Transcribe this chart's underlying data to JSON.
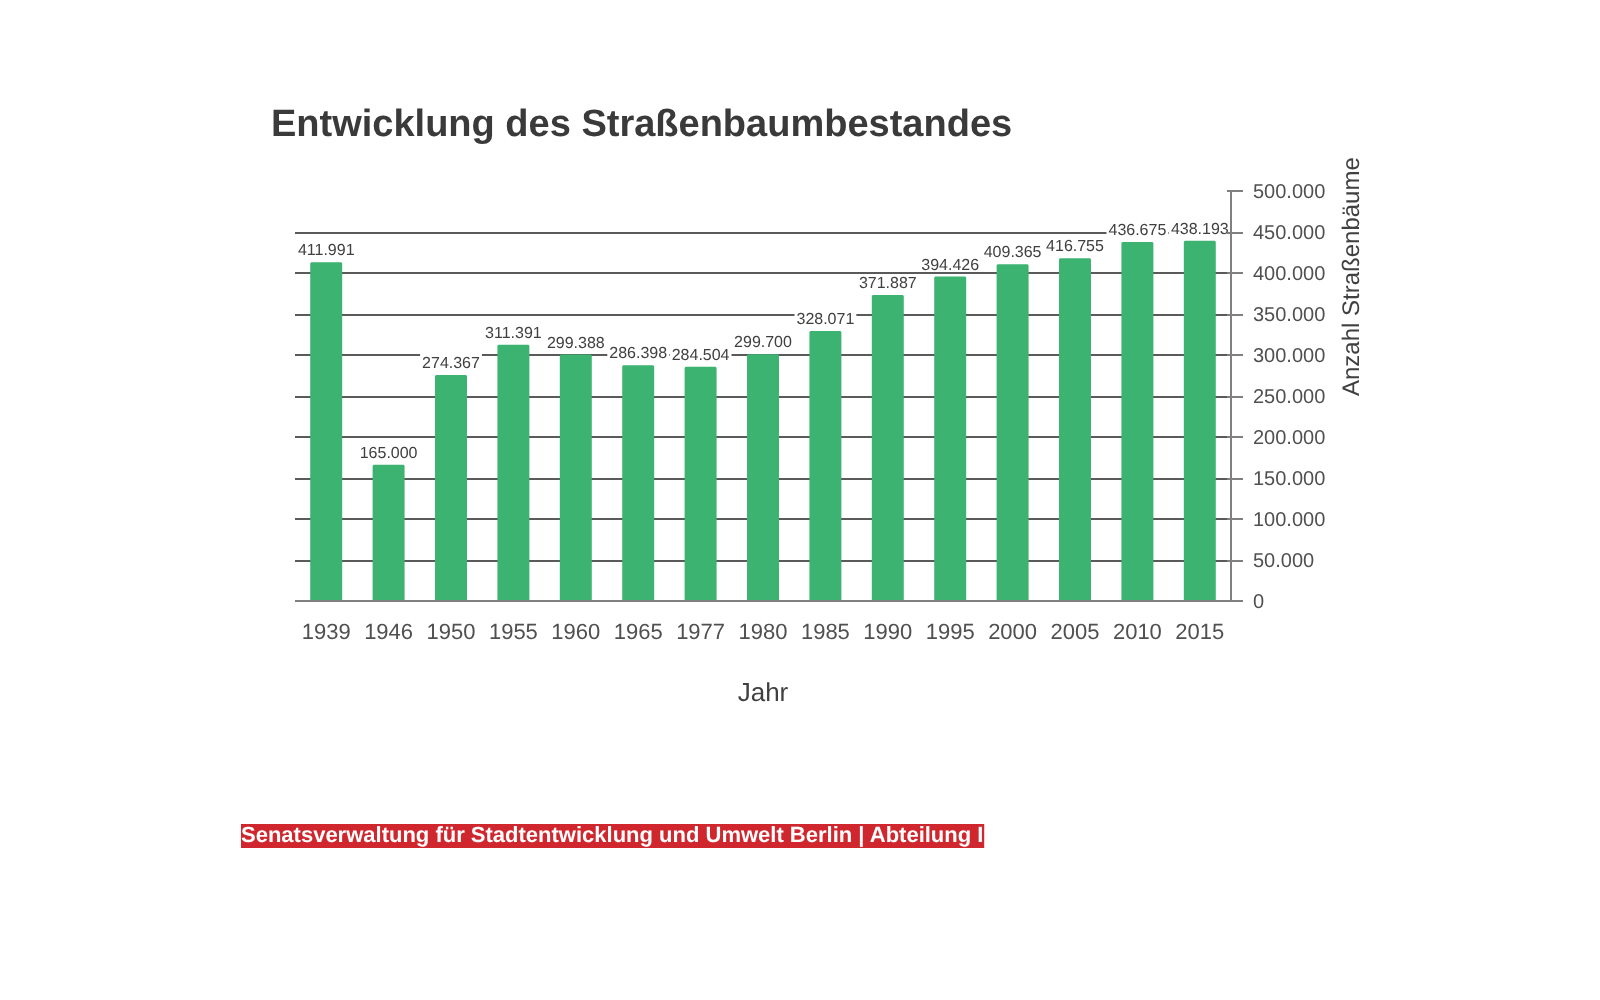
{
  "chart_data": {
    "type": "bar",
    "title": "Entwicklung des Straßenbaumbestandes",
    "xlabel": "Jahr",
    "ylabel": "Anzahl Straßenbäume",
    "categories": [
      "1939",
      "1946",
      "1950",
      "1955",
      "1960",
      "1965",
      "1977",
      "1980",
      "1985",
      "1990",
      "1995",
      "2000",
      "2005",
      "2010",
      "2015"
    ],
    "values": [
      411991,
      165000,
      274367,
      311391,
      299388,
      286398,
      284504,
      299700,
      328071,
      371887,
      394426,
      409365,
      416755,
      436675,
      438193
    ],
    "value_labels": [
      "411.991",
      "165.000",
      "274.367",
      "311.391",
      "299.388",
      "286.398",
      "284.504",
      "299.700",
      "328.071",
      "371.887",
      "394.426",
      "409.365",
      "416.755",
      "436.675",
      "438.193"
    ],
    "color": "#3cb371",
    "ylim": [
      0,
      500000
    ],
    "yticks": [
      0,
      {
        "value": 50000,
        "label": "50.000"
      },
      {
        "value": 100000,
        "label": "100.000"
      },
      {
        "value": 150000,
        "label": "150.000"
      },
      {
        "value": 200000,
        "label": "200.000"
      },
      {
        "value": 250000,
        "label": "250.000"
      },
      {
        "value": 300000,
        "label": "300.000"
      },
      {
        "value": 350000,
        "label": "350.000"
      },
      {
        "value": 400000,
        "label": "400.000"
      },
      {
        "value": 450000,
        "label": "450.000"
      },
      {
        "value": 500000,
        "label": "500.000"
      }
    ],
    "grid": "y",
    "annotations": [
      "Senatsverwaltung für Stadtentwicklung und Umwelt Berlin | Abteilung I"
    ]
  }
}
